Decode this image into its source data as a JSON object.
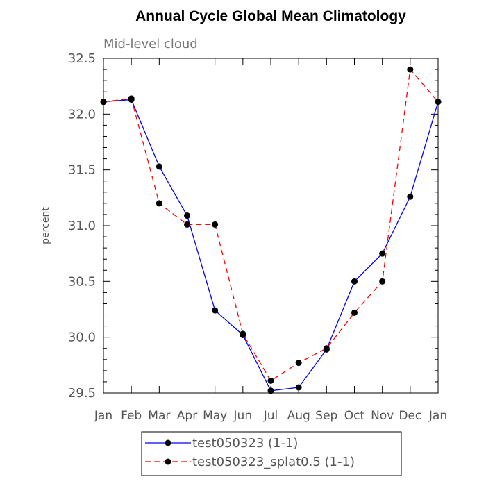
{
  "chart_data": {
    "type": "line",
    "title": "Annual Cycle Global Mean Climatology",
    "subtitle": "Mid-level cloud",
    "xlabel": "",
    "ylabel": "percent",
    "categories": [
      "Jan",
      "Feb",
      "Mar",
      "Apr",
      "May",
      "Jun",
      "Jul",
      "Aug",
      "Sep",
      "Oct",
      "Nov",
      "Dec",
      "Jan"
    ],
    "ylim": [
      29.5,
      32.5
    ],
    "yticks": [
      "29.5",
      "30.0",
      "30.5",
      "31.0",
      "31.5",
      "32.0",
      "32.5"
    ],
    "grid": false,
    "legend_position": "bottom",
    "series": [
      {
        "name": "test050323 (1-1)",
        "color": "#0000ff",
        "dash": "solid",
        "values": [
          32.11,
          32.13,
          31.53,
          31.09,
          30.24,
          30.02,
          29.52,
          29.55,
          29.89,
          30.5,
          30.75,
          31.26,
          32.11
        ]
      },
      {
        "name": "test050323_splat0.5 (1-1)",
        "color": "#ff0000",
        "dash": "dashed",
        "values": [
          32.11,
          32.14,
          31.2,
          31.01,
          31.01,
          30.03,
          29.61,
          29.77,
          29.9,
          30.22,
          30.5,
          32.4,
          32.11
        ]
      }
    ]
  }
}
